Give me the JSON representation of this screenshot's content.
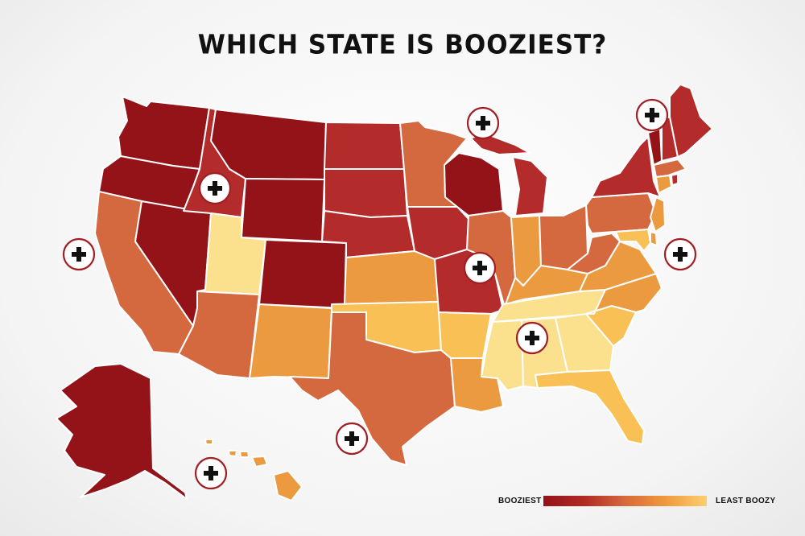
{
  "title": "WHICH STATE IS BOOZIEST?",
  "legend": {
    "min_label": "BOOZIEST",
    "max_label": "LEAST BOOZY",
    "gradient_colors": [
      "#941319",
      "#b02a25",
      "#d8693c",
      "#f09a3e",
      "#fbcf6e"
    ]
  },
  "palette": {
    "c1": "#941319",
    "c2": "#b42b2c",
    "c3": "#d4683f",
    "c4": "#ec9a40",
    "c5": "#f9c055",
    "c6": "#fbe08e",
    "water": "#ffffff"
  },
  "states": [
    {
      "name": "Washington",
      "shade": "c1"
    },
    {
      "name": "Oregon",
      "shade": "c1"
    },
    {
      "name": "California",
      "shade": "c3"
    },
    {
      "name": "Nevada",
      "shade": "c1"
    },
    {
      "name": "Idaho",
      "shade": "c2"
    },
    {
      "name": "Montana",
      "shade": "c1"
    },
    {
      "name": "Wyoming",
      "shade": "c1"
    },
    {
      "name": "Utah",
      "shade": "c6"
    },
    {
      "name": "Colorado",
      "shade": "c1"
    },
    {
      "name": "Arizona",
      "shade": "c3"
    },
    {
      "name": "New Mexico",
      "shade": "c4"
    },
    {
      "name": "North Dakota",
      "shade": "c2"
    },
    {
      "name": "South Dakota",
      "shade": "c2"
    },
    {
      "name": "Nebraska",
      "shade": "c2"
    },
    {
      "name": "Kansas",
      "shade": "c4"
    },
    {
      "name": "Oklahoma",
      "shade": "c5"
    },
    {
      "name": "Texas",
      "shade": "c3"
    },
    {
      "name": "Minnesota",
      "shade": "c3"
    },
    {
      "name": "Iowa",
      "shade": "c2"
    },
    {
      "name": "Missouri",
      "shade": "c2"
    },
    {
      "name": "Arkansas",
      "shade": "c5"
    },
    {
      "name": "Louisiana",
      "shade": "c4"
    },
    {
      "name": "Wisconsin",
      "shade": "c1"
    },
    {
      "name": "Illinois",
      "shade": "c3"
    },
    {
      "name": "Michigan",
      "shade": "c2"
    },
    {
      "name": "Indiana",
      "shade": "c4"
    },
    {
      "name": "Ohio",
      "shade": "c3"
    },
    {
      "name": "Kentucky",
      "shade": "c4"
    },
    {
      "name": "Tennessee",
      "shade": "c6"
    },
    {
      "name": "Mississippi",
      "shade": "c6"
    },
    {
      "name": "Alabama",
      "shade": "c6"
    },
    {
      "name": "Georgia",
      "shade": "c6"
    },
    {
      "name": "Florida",
      "shade": "c5"
    },
    {
      "name": "South Carolina",
      "shade": "c5"
    },
    {
      "name": "North Carolina",
      "shade": "c4"
    },
    {
      "name": "Virginia",
      "shade": "c4"
    },
    {
      "name": "West Virginia",
      "shade": "c3"
    },
    {
      "name": "Pennsylvania",
      "shade": "c3"
    },
    {
      "name": "New York",
      "shade": "c2"
    },
    {
      "name": "Vermont",
      "shade": "c1"
    },
    {
      "name": "New Hampshire",
      "shade": "c2"
    },
    {
      "name": "Maine",
      "shade": "c2"
    },
    {
      "name": "Massachusetts",
      "shade": "c3"
    },
    {
      "name": "Connecticut",
      "shade": "c4"
    },
    {
      "name": "Rhode Island",
      "shade": "c2"
    },
    {
      "name": "New Jersey",
      "shade": "c4"
    },
    {
      "name": "Delaware",
      "shade": "c4"
    },
    {
      "name": "Maryland",
      "shade": "c5"
    },
    {
      "name": "Alaska",
      "shade": "c1"
    },
    {
      "name": "Hawaii",
      "shade": "c4"
    }
  ],
  "markers": {
    "icon": "plus-icon",
    "count": 10
  }
}
